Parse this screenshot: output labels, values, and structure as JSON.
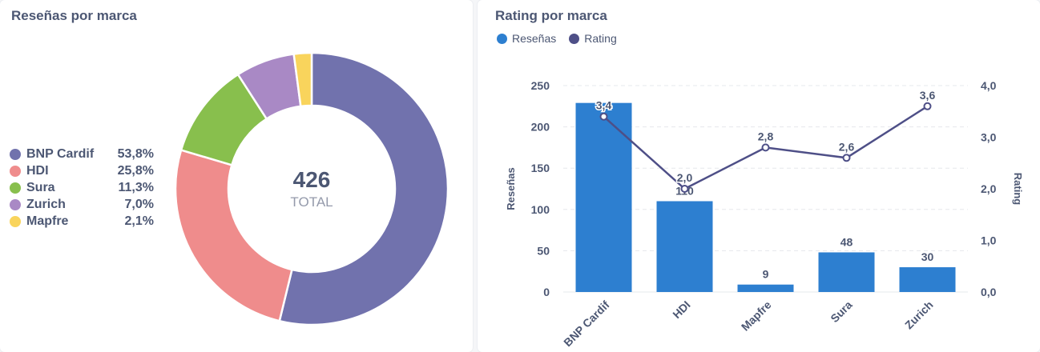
{
  "donut_card": {
    "title": "Reseñas por marca",
    "total_value": "426",
    "total_label": "TOTAL"
  },
  "bar_card": {
    "title": "Rating por marca"
  },
  "chart_data": [
    {
      "type": "pie",
      "title": "Reseñas por marca",
      "labels": [
        "BNP Cardif",
        "HDI",
        "Sura",
        "Zurich",
        "Mapfre"
      ],
      "percent_labels": [
        "53,8%",
        "25,8%",
        "11,3%",
        "7,0%",
        "2,1%"
      ],
      "values": [
        53.8,
        25.8,
        11.3,
        7.0,
        2.1
      ],
      "colors": [
        "#7172ad",
        "#ef8c8c",
        "#88bf4d",
        "#a989c5",
        "#f9d45c"
      ],
      "center_text": "426",
      "center_subtext": "TOTAL"
    },
    {
      "type": "bar",
      "title": "Rating por marca",
      "categories": [
        "BNP Cardif",
        "HDI",
        "Mapfre",
        "Sura",
        "Zurich"
      ],
      "series": [
        {
          "name": "Reseñas",
          "kind": "bar",
          "axis": "left",
          "color": "#2d7fd0",
          "values": [
            229,
            110,
            9,
            48,
            30
          ],
          "value_labels": [
            "",
            "110",
            "9",
            "48",
            "30"
          ]
        },
        {
          "name": "Rating",
          "kind": "line",
          "axis": "right",
          "color": "#4e4f87",
          "values": [
            3.4,
            2.0,
            2.8,
            2.6,
            3.6
          ],
          "value_labels": [
            "3,4",
            "2,0",
            "2,8",
            "2,6",
            "3,6"
          ]
        }
      ],
      "ylabel": "Reseñas",
      "y2label": "Rating",
      "ylim": [
        0,
        250
      ],
      "y2lim": [
        0,
        4
      ],
      "yticks": [
        "0",
        "50",
        "100",
        "150",
        "200",
        "250"
      ],
      "y2ticks": [
        "0,0",
        "1,0",
        "2,0",
        "3,0",
        "4,0"
      ],
      "legend": "top-left",
      "grid": true
    }
  ]
}
